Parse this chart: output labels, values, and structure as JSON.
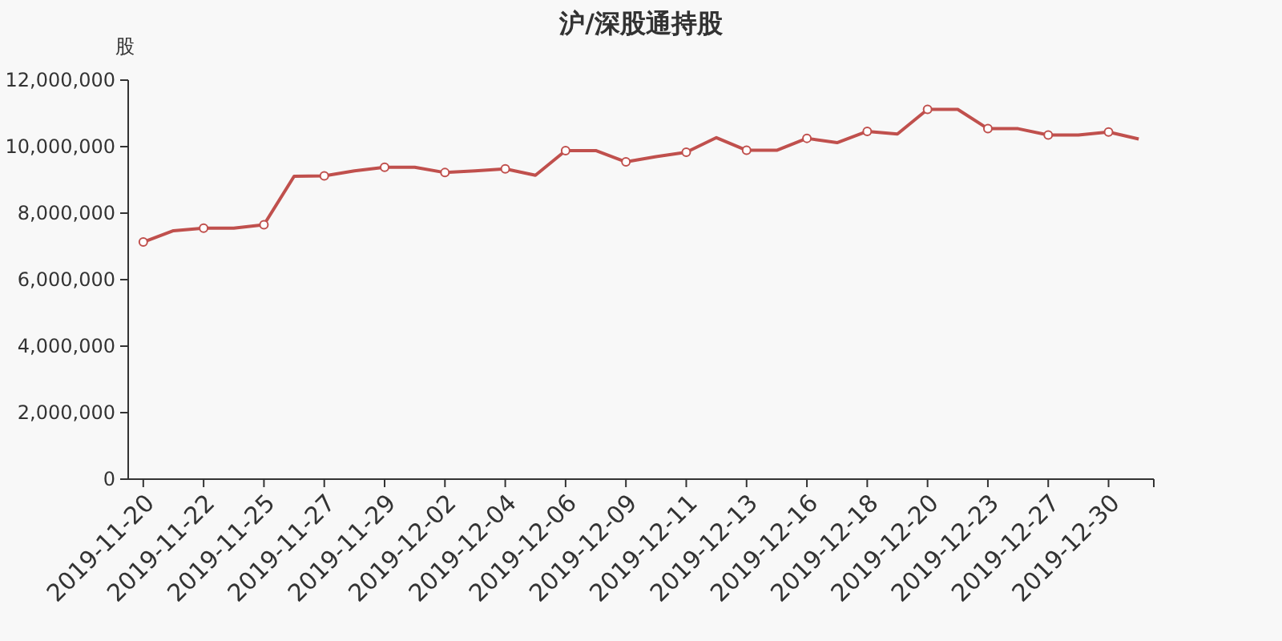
{
  "chart_data": {
    "type": "line",
    "title": "沪/深股通持股",
    "ylabel": "股",
    "categories": [
      "2019-11-20",
      null,
      "2019-11-22",
      null,
      "2019-11-25",
      null,
      "2019-11-27",
      null,
      "2019-11-29",
      null,
      "2019-12-02",
      null,
      "2019-12-04",
      null,
      "2019-12-06",
      null,
      "2019-12-09",
      null,
      "2019-12-11",
      null,
      "2019-12-13",
      null,
      "2019-12-16",
      null,
      "2019-12-18",
      null,
      "2019-12-20",
      null,
      "2019-12-23",
      null,
      "2019-12-27",
      null,
      "2019-12-30",
      null
    ],
    "series": [
      {
        "color": "#c0504d",
        "values": [
          7130000,
          7470000,
          7550000,
          7550000,
          7650000,
          9110000,
          9120000,
          9270000,
          9380000,
          9380000,
          9220000,
          9270000,
          9330000,
          9140000,
          9880000,
          9880000,
          9540000,
          9700000,
          9830000,
          10270000,
          9890000,
          9890000,
          10250000,
          10120000,
          10460000,
          10380000,
          11120000,
          11120000,
          10540000,
          10540000,
          10350000,
          10350000,
          10440000,
          10230000
        ]
      }
    ],
    "ylim": [
      0,
      12000000
    ],
    "yticks": [
      {
        "value": 0,
        "label": "0"
      },
      {
        "value": 2000000,
        "label": "2,000,000"
      },
      {
        "value": 4000000,
        "label": "4,000,000"
      },
      {
        "value": 6000000,
        "label": "6,000,000"
      },
      {
        "value": 8000000,
        "label": "8,000,000"
      },
      {
        "value": 10000000,
        "label": "10,000,000"
      },
      {
        "value": 12000000,
        "label": "12,000,000"
      }
    ],
    "marker": "circle",
    "line_style": "solid",
    "grid": false
  }
}
